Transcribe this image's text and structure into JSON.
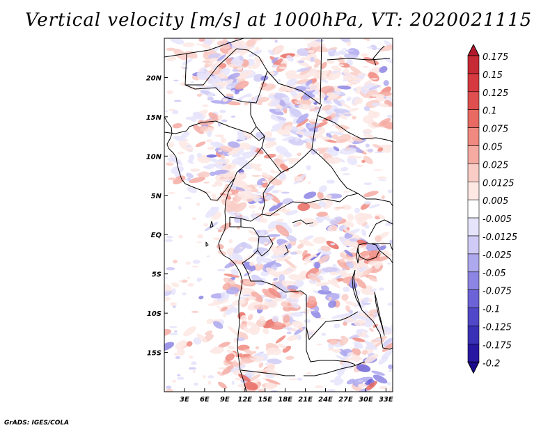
{
  "title": "Vertical velocity [m/s] at 1000hPa, VT: 2020021115",
  "credit": "GrADS: IGES/COLA",
  "map": {
    "lon_range": [
      0,
      34
    ],
    "lat_range": [
      -20,
      25
    ],
    "lat_ticks": [
      "20N",
      "15N",
      "10N",
      "5N",
      "EQ",
      "5S",
      "10S",
      "15S"
    ],
    "lon_ticks": [
      "3E",
      "6E",
      "9E",
      "12E",
      "15E",
      "18E",
      "21E",
      "24E",
      "27E",
      "30E",
      "33E"
    ]
  },
  "colorbar": {
    "labels": [
      "0.175",
      "0.15",
      "0.125",
      "0.1",
      "0.075",
      "0.05",
      "0.025",
      "0.0125",
      "0.005",
      "-0.005",
      "-0.0125",
      "-0.025",
      "-0.05",
      "-0.075",
      "-0.1",
      "-0.125",
      "-0.175",
      "-0.2"
    ],
    "colors": [
      "#b2182b",
      "#c62a35",
      "#d6393f",
      "#e04f4f",
      "#e86a62",
      "#f08a80",
      "#f5aaa2",
      "#f9cdc6",
      "#fde8e4",
      "#ffffff",
      "#e6e4fb",
      "#cfcbf6",
      "#aea8ee",
      "#8d85e4",
      "#6d63d8",
      "#5048c8",
      "#3a30b6",
      "#2817a0",
      "#180a8a"
    ]
  }
}
